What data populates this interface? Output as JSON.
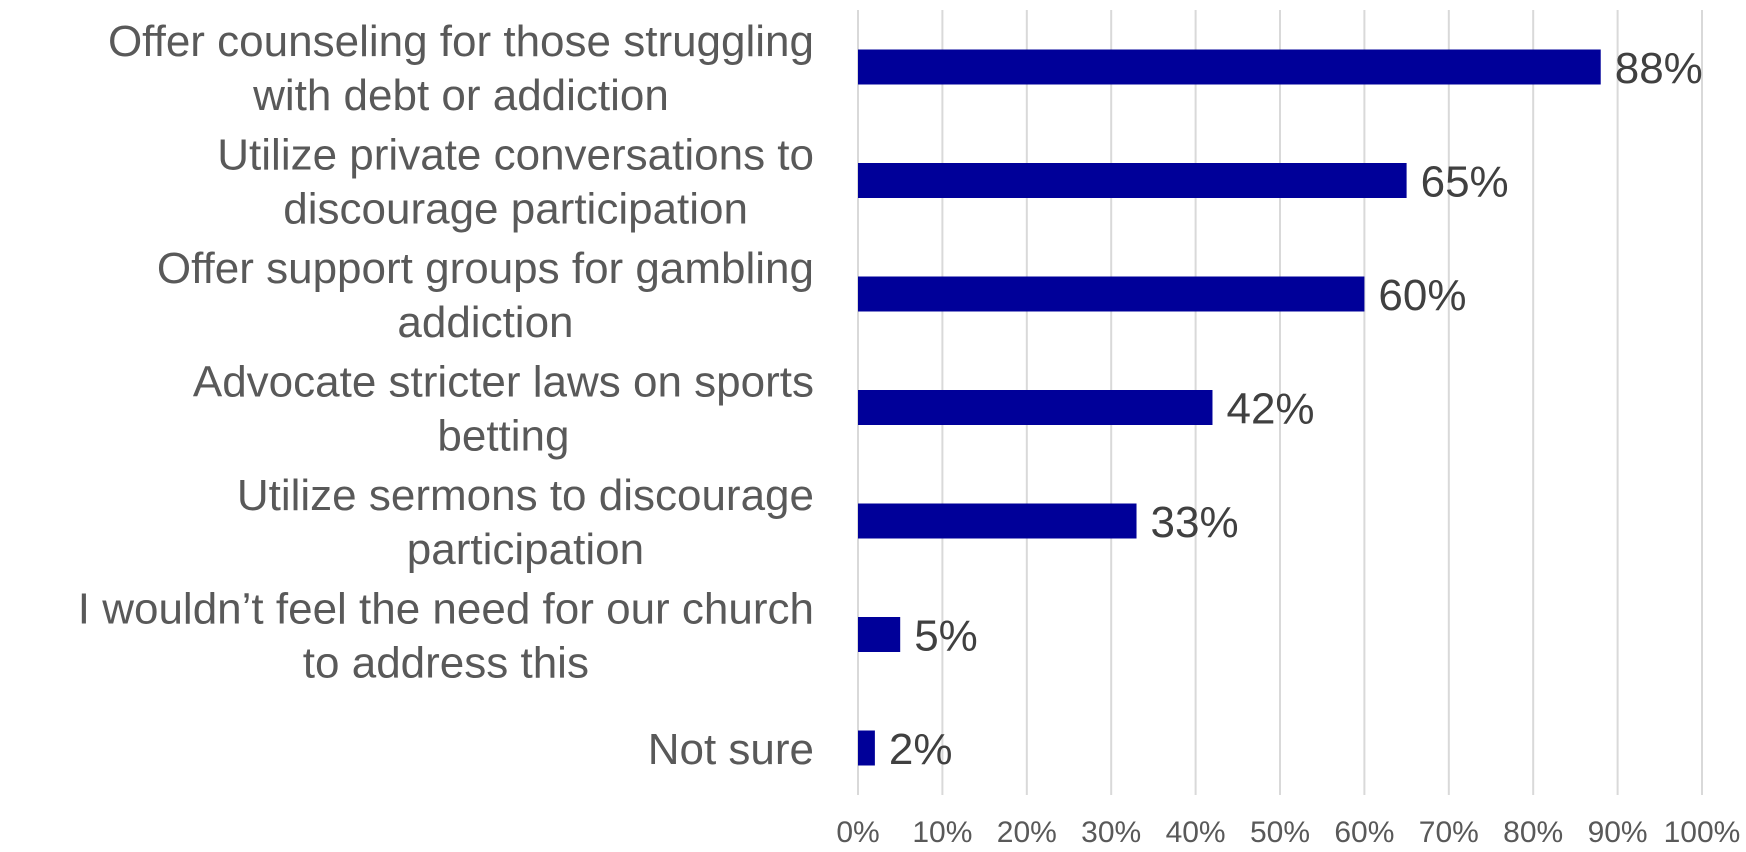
{
  "chart_data": {
    "type": "bar",
    "orientation": "horizontal",
    "categories": [
      [
        "Offer counseling for those struggling",
        "with debt or addiction"
      ],
      [
        "Utilize private conversations to",
        "discourage participation"
      ],
      [
        "Offer support groups for gambling",
        "addiction"
      ],
      [
        "Advocate stricter laws on sports",
        "betting"
      ],
      [
        "Utilize sermons to discourage",
        "participation"
      ],
      [
        "I wouldn’t feel the need for our church",
        "to address this"
      ],
      [
        "Not sure"
      ]
    ],
    "values": [
      88,
      65,
      60,
      42,
      33,
      5,
      2
    ],
    "data_labels": [
      "88%",
      "65%",
      "60%",
      "42%",
      "33%",
      "5%",
      "2%"
    ],
    "xlim": [
      0,
      100
    ],
    "x_ticks": [
      0,
      10,
      20,
      30,
      40,
      50,
      60,
      70,
      80,
      90,
      100
    ],
    "x_tick_labels": [
      "0%",
      "10%",
      "20%",
      "30%",
      "40%",
      "50%",
      "60%",
      "70%",
      "80%",
      "90%",
      "100%"
    ],
    "grid": "vertical",
    "legend": "none",
    "bar_color": "#000099"
  }
}
